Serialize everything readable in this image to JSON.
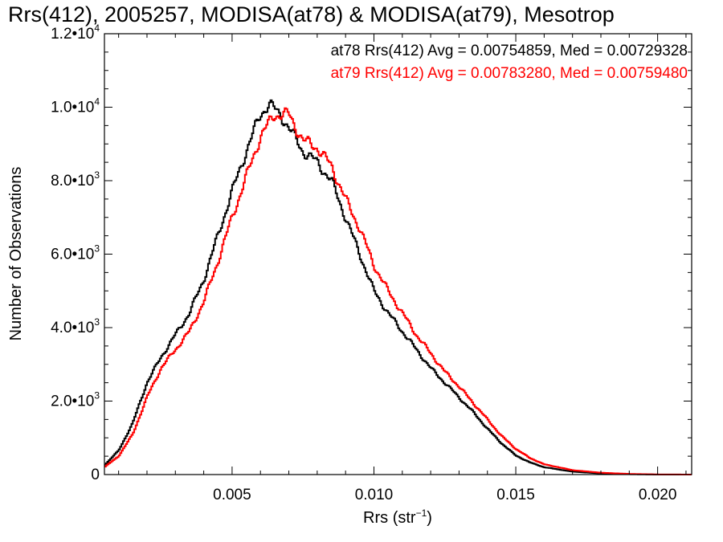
{
  "chart_data": {
    "type": "line",
    "title": "Rrs(412), 2005257, MODISA(at78) & MODISA(at79), Mesotrop",
    "xlabel": "Rrs (str",
    "xlabel_sup": "−1",
    "xlabel_close": ")",
    "ylabel": "Number of Observations",
    "xlim": [
      0.0005,
      0.0212
    ],
    "ylim": [
      0,
      12000
    ],
    "x_tick_labels": [
      {
        "value": 0.005,
        "text": "0.005"
      },
      {
        "value": 0.01,
        "text": "0.010"
      },
      {
        "value": 0.015,
        "text": "0.015"
      },
      {
        "value": 0.02,
        "text": "0.020"
      }
    ],
    "y_tick_labels": [
      {
        "value": 0,
        "mant": "0",
        "exp": ""
      },
      {
        "value": 2000,
        "mant": "2.0•10",
        "exp": "3"
      },
      {
        "value": 4000,
        "mant": "4.0•10",
        "exp": "3"
      },
      {
        "value": 6000,
        "mant": "6.0•10",
        "exp": "3"
      },
      {
        "value": 8000,
        "mant": "8.0•10",
        "exp": "3"
      },
      {
        "value": 10000,
        "mant": "1.0•10",
        "exp": "4"
      },
      {
        "value": 12000,
        "mant": "1.2•10",
        "exp": "4"
      }
    ],
    "grid": false,
    "legend_position": "top-right",
    "series": [
      {
        "name": "at78",
        "color": "#000000",
        "legend_text": "at78 Rrs(412) Avg = 0.00754859, Med = 0.00729328",
        "x": [
          0.0005,
          0.001,
          0.0015,
          0.002,
          0.0025,
          0.003,
          0.0035,
          0.004,
          0.0045,
          0.005,
          0.0055,
          0.006,
          0.0063,
          0.0068,
          0.0075,
          0.008,
          0.0085,
          0.009,
          0.0095,
          0.01,
          0.0105,
          0.011,
          0.0115,
          0.012,
          0.0125,
          0.013,
          0.0135,
          0.014,
          0.0145,
          0.015,
          0.0155,
          0.016,
          0.017,
          0.018,
          0.019,
          0.02,
          0.0212
        ],
        "y": [
          250,
          650,
          1400,
          2500,
          3200,
          3800,
          4400,
          5300,
          6500,
          7700,
          8800,
          9800,
          10100,
          9700,
          8800,
          8500,
          8000,
          7000,
          6000,
          5000,
          4400,
          3900,
          3400,
          2900,
          2500,
          2100,
          1700,
          1250,
          850,
          520,
          330,
          200,
          80,
          30,
          10,
          0,
          0
        ]
      },
      {
        "name": "at79",
        "color": "#ff0000",
        "legend_text": "at79 Rrs(412) Avg = 0.00783280, Med = 0.00759480",
        "x": [
          0.0005,
          0.001,
          0.0015,
          0.002,
          0.0025,
          0.003,
          0.0035,
          0.004,
          0.0045,
          0.005,
          0.0055,
          0.006,
          0.0065,
          0.007,
          0.0075,
          0.008,
          0.0085,
          0.009,
          0.0095,
          0.01,
          0.0105,
          0.011,
          0.0115,
          0.012,
          0.0125,
          0.013,
          0.0135,
          0.014,
          0.0145,
          0.015,
          0.0155,
          0.016,
          0.017,
          0.018,
          0.019,
          0.02,
          0.0212
        ],
        "y": [
          200,
          500,
          1100,
          2100,
          2900,
          3400,
          3900,
          4700,
          5800,
          7000,
          8100,
          9200,
          9800,
          9800,
          9100,
          8900,
          8400,
          7500,
          6700,
          5700,
          5000,
          4400,
          3800,
          3300,
          2800,
          2400,
          1950,
          1500,
          1050,
          700,
          450,
          280,
          120,
          50,
          18,
          4,
          0
        ]
      }
    ]
  }
}
